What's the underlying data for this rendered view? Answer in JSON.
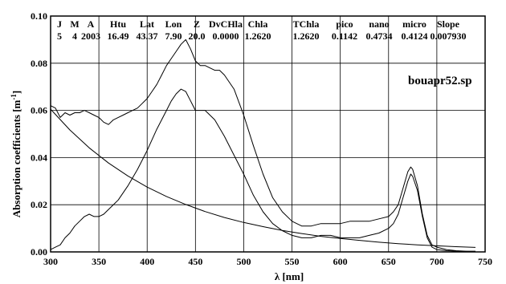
{
  "chart_data": {
    "type": "line",
    "filename": "bouapr52.sp",
    "xlabel": "λ [nm]",
    "ylabel_main": "Absorption coefficients [m",
    "ylabel_sup": "-1",
    "ylabel_close": "]",
    "xlim": [
      300,
      750
    ],
    "ylim": [
      0,
      0.1
    ],
    "x_ticks": [
      "300",
      "350",
      "400",
      "450",
      "500",
      "550",
      "600",
      "650",
      "700",
      "750"
    ],
    "y_ticks": [
      "0.00",
      "0.02",
      "0.04",
      "0.06",
      "0.08",
      "0.10"
    ],
    "grid": true,
    "header": {
      "names": [
        "J",
        "M",
        "A",
        "Htu",
        "Lat",
        "Lon",
        "Z",
        "DvCHla",
        "Chla",
        "TChla",
        "pico",
        "nano",
        "micro",
        "Slope"
      ],
      "values": [
        "5",
        "4",
        "2003",
        "16.49",
        "43.37",
        "7.90",
        "20.0",
        "0.0000",
        "1.2620",
        "1.2620",
        "0.1142",
        "0.4734",
        "0.4124",
        "0.007930"
      ]
    },
    "series": [
      {
        "x": [
          300,
          305,
          310,
          315,
          320,
          325,
          330,
          335,
          340,
          345,
          350,
          355,
          360,
          365,
          370,
          375,
          380,
          385,
          390,
          395,
          400,
          405,
          410,
          415,
          420,
          425,
          430,
          435,
          440,
          445,
          450,
          455,
          460,
          465,
          470,
          475,
          480,
          490,
          500,
          510,
          520,
          530,
          540,
          550,
          560,
          570,
          580,
          590,
          600,
          610,
          620,
          630,
          640,
          650,
          655,
          660,
          665,
          670,
          673,
          675,
          680,
          685,
          690,
          695,
          700,
          710,
          720,
          730,
          740
        ],
        "y": [
          0.062,
          0.061,
          0.057,
          0.059,
          0.058,
          0.059,
          0.059,
          0.06,
          0.059,
          0.058,
          0.057,
          0.055,
          0.054,
          0.056,
          0.057,
          0.058,
          0.059,
          0.06,
          0.061,
          0.063,
          0.065,
          0.068,
          0.071,
          0.075,
          0.079,
          0.082,
          0.085,
          0.088,
          0.09,
          0.086,
          0.081,
          0.079,
          0.079,
          0.078,
          0.077,
          0.077,
          0.075,
          0.069,
          0.058,
          0.045,
          0.033,
          0.023,
          0.017,
          0.013,
          0.011,
          0.011,
          0.012,
          0.012,
          0.012,
          0.013,
          0.013,
          0.013,
          0.014,
          0.015,
          0.017,
          0.02,
          0.027,
          0.034,
          0.036,
          0.035,
          0.028,
          0.016,
          0.007,
          0.003,
          0.002,
          0.001,
          0.0005,
          0.0003,
          0.0003
        ]
      },
      {
        "x": [
          300,
          305,
          310,
          315,
          320,
          325,
          330,
          335,
          340,
          345,
          350,
          355,
          360,
          370,
          380,
          390,
          400,
          410,
          420,
          425,
          430,
          435,
          440,
          445,
          450,
          460,
          470,
          480,
          490,
          500,
          510,
          520,
          530,
          540,
          550,
          560,
          570,
          580,
          590,
          600,
          610,
          620,
          630,
          640,
          650,
          655,
          660,
          665,
          670,
          673,
          675,
          680,
          685,
          690,
          695,
          700,
          710,
          720,
          730,
          740
        ],
        "y": [
          0.001,
          0.002,
          0.003,
          0.006,
          0.008,
          0.011,
          0.013,
          0.015,
          0.016,
          0.015,
          0.015,
          0.016,
          0.018,
          0.022,
          0.028,
          0.035,
          0.043,
          0.052,
          0.06,
          0.064,
          0.067,
          0.069,
          0.068,
          0.064,
          0.06,
          0.06,
          0.056,
          0.049,
          0.041,
          0.033,
          0.024,
          0.017,
          0.012,
          0.009,
          0.007,
          0.006,
          0.006,
          0.007,
          0.007,
          0.006,
          0.006,
          0.006,
          0.007,
          0.008,
          0.01,
          0.012,
          0.016,
          0.023,
          0.03,
          0.033,
          0.032,
          0.026,
          0.015,
          0.006,
          0.002,
          0.001,
          0.0005,
          0.0003,
          0.0002,
          0.0001
        ]
      },
      {
        "x": [
          300,
          320,
          340,
          360,
          380,
          400,
          420,
          440,
          460,
          480,
          500,
          520,
          540,
          560,
          580,
          600,
          620,
          640,
          660,
          680,
          700,
          720,
          740
        ],
        "y": [
          0.0605,
          0.0517,
          0.0441,
          0.0377,
          0.0322,
          0.0275,
          0.0235,
          0.0201,
          0.0171,
          0.0146,
          0.0125,
          0.0107,
          0.0091,
          0.0078,
          0.0066,
          0.0057,
          0.0049,
          0.0041,
          0.0035,
          0.003,
          0.0026,
          0.0022,
          0.0019
        ]
      }
    ]
  }
}
